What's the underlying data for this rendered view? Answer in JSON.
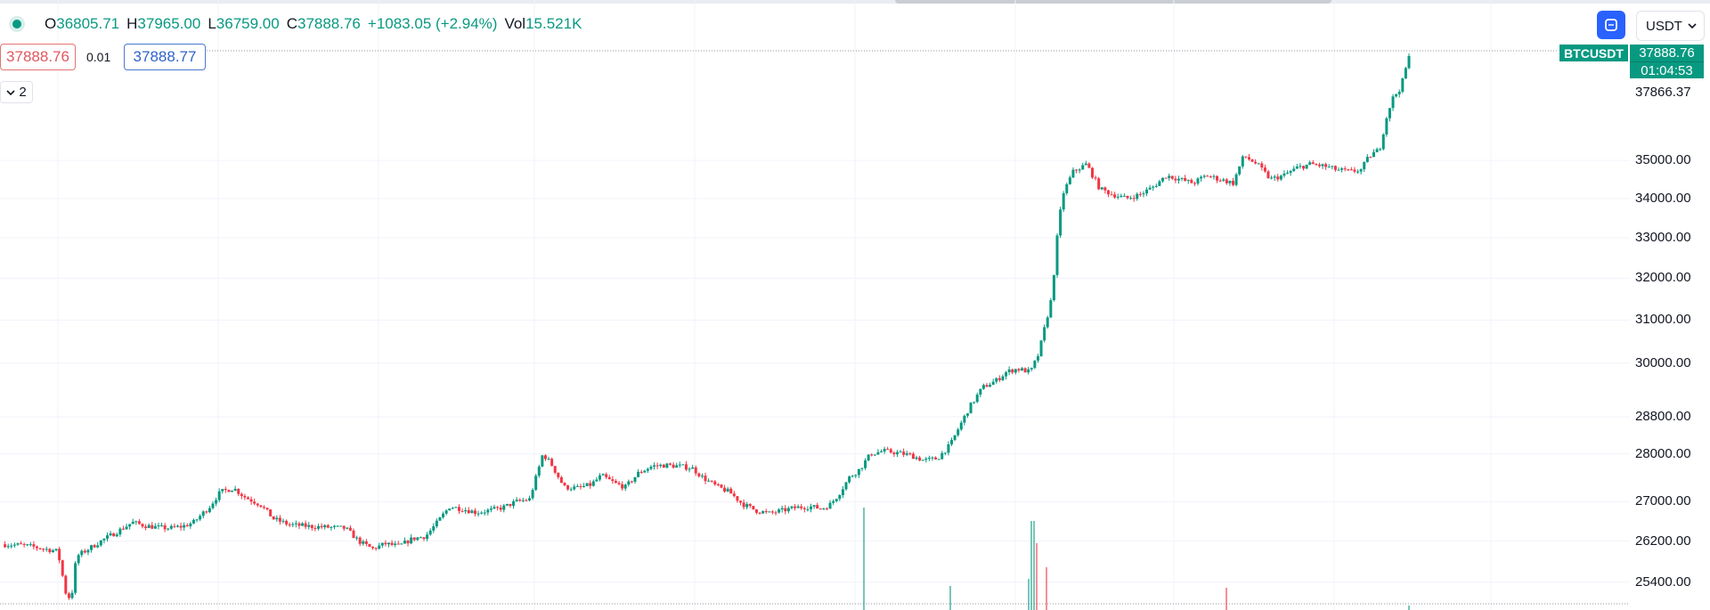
{
  "legend": {
    "open_label": "O",
    "open": "36805.71",
    "high_label": "H",
    "high": "37965.00",
    "low_label": "L",
    "low": "36759.00",
    "close_label": "C",
    "close": "37888.76",
    "change": "+1083.05 (+2.94%)",
    "vol_label": "Vol",
    "vol": "15.521K"
  },
  "trading": {
    "sell_price": "37888.76",
    "spread": "0.01",
    "buy_price": "37888.77"
  },
  "indicators": {
    "count": "2"
  },
  "toolbar": {
    "currency": "USDT"
  },
  "price_scale": {
    "symbol": "BTCUSDT",
    "last_price": "37888.76",
    "countdown": "01:04:53",
    "high_marker": "37866.37"
  },
  "colors": {
    "up": "#089981",
    "down": "#f23645",
    "accent": "#2962ff"
  },
  "chart_data": {
    "type": "candlestick",
    "symbol": "BTCUSDT",
    "currency": "USDT",
    "y_ticks": [
      35000,
      34000,
      33000,
      32000,
      31000,
      30000,
      28800,
      28000,
      27000,
      26200,
      25400
    ],
    "y_tick_labels": [
      "35000.00",
      "34000.00",
      "33000.00",
      "32000.00",
      "31000.00",
      "30000.00",
      "28800.00",
      "28000.00",
      "27000.00",
      "26200.00",
      "25400.00"
    ],
    "ylim": [
      24950,
      37990
    ],
    "scale": "log",
    "grid": true,
    "last_price": 37888.76,
    "price_path": [
      [
        0,
        26140
      ],
      [
        0.8,
        26120
      ],
      [
        1.5,
        26060
      ],
      [
        2.1,
        26000
      ],
      [
        2.4,
        25200
      ],
      [
        2.6,
        25050
      ],
      [
        2.8,
        25900
      ],
      [
        3.2,
        26030
      ],
      [
        3.8,
        26230
      ],
      [
        4.3,
        26380
      ],
      [
        4.9,
        26580
      ],
      [
        5.3,
        26520
      ],
      [
        5.8,
        26480
      ],
      [
        6.3,
        26460
      ],
      [
        6.8,
        26500
      ],
      [
        7.2,
        26580
      ],
      [
        7.8,
        26900
      ],
      [
        8.2,
        27200
      ],
      [
        8.7,
        27280
      ],
      [
        9.1,
        27100
      ],
      [
        9.7,
        26940
      ],
      [
        10.2,
        26650
      ],
      [
        10.8,
        26530
      ],
      [
        11.5,
        26500
      ],
      [
        12.2,
        26480
      ],
      [
        12.9,
        26460
      ],
      [
        13.4,
        26200
      ],
      [
        13.9,
        26050
      ],
      [
        14.4,
        26150
      ],
      [
        14.9,
        26100
      ],
      [
        15.4,
        26250
      ],
      [
        15.9,
        26300
      ],
      [
        16.3,
        26550
      ],
      [
        16.8,
        26900
      ],
      [
        17.3,
        26850
      ],
      [
        17.8,
        26780
      ],
      [
        18.3,
        26820
      ],
      [
        18.8,
        26880
      ],
      [
        19.3,
        27000
      ],
      [
        19.8,
        27050
      ],
      [
        20.1,
        27600
      ],
      [
        20.3,
        28000
      ],
      [
        20.6,
        27800
      ],
      [
        21.1,
        27300
      ],
      [
        21.6,
        27280
      ],
      [
        22.1,
        27350
      ],
      [
        22.5,
        27540
      ],
      [
        23.0,
        27380
      ],
      [
        23.4,
        27300
      ],
      [
        23.9,
        27600
      ],
      [
        24.4,
        27740
      ],
      [
        24.9,
        27760
      ],
      [
        25.4,
        27740
      ],
      [
        25.9,
        27700
      ],
      [
        26.3,
        27500
      ],
      [
        26.8,
        27320
      ],
      [
        27.3,
        27200
      ],
      [
        27.8,
        26950
      ],
      [
        28.3,
        26820
      ],
      [
        28.8,
        26760
      ],
      [
        29.3,
        26820
      ],
      [
        29.8,
        26880
      ],
      [
        30.3,
        26900
      ],
      [
        30.8,
        26860
      ],
      [
        31.1,
        26950
      ],
      [
        31.4,
        27150
      ],
      [
        31.8,
        27500
      ],
      [
        32.2,
        27680
      ],
      [
        32.6,
        28000
      ],
      [
        33.1,
        28060
      ],
      [
        33.6,
        28020
      ],
      [
        34.1,
        27970
      ],
      [
        34.6,
        27860
      ],
      [
        35.1,
        27900
      ],
      [
        35.6,
        28200
      ],
      [
        35.9,
        28550
      ],
      [
        36.3,
        29000
      ],
      [
        36.8,
        29450
      ],
      [
        37.3,
        29600
      ],
      [
        37.7,
        29800
      ],
      [
        38.1,
        29870
      ],
      [
        38.6,
        29800
      ],
      [
        38.9,
        30200
      ],
      [
        39.2,
        31000
      ],
      [
        39.4,
        31550
      ],
      [
        39.6,
        33000
      ],
      [
        39.8,
        34100
      ],
      [
        40.2,
        34700
      ],
      [
        40.7,
        34900
      ],
      [
        41.2,
        34250
      ],
      [
        41.7,
        34100
      ],
      [
        42.2,
        34000
      ],
      [
        42.7,
        34100
      ],
      [
        43.2,
        34300
      ],
      [
        43.7,
        34600
      ],
      [
        44.2,
        34500
      ],
      [
        44.7,
        34400
      ],
      [
        45.2,
        34600
      ],
      [
        45.7,
        34500
      ],
      [
        46.2,
        34400
      ],
      [
        46.6,
        35120
      ],
      [
        47.1,
        34900
      ],
      [
        47.6,
        34500
      ],
      [
        48.1,
        34600
      ],
      [
        48.6,
        34800
      ],
      [
        49.1,
        34900
      ],
      [
        49.6,
        34850
      ],
      [
        50.1,
        34750
      ],
      [
        50.6,
        34700
      ],
      [
        51.0,
        34750
      ],
      [
        51.3,
        35100
      ],
      [
        51.7,
        35300
      ],
      [
        52.0,
        36300
      ],
      [
        52.2,
        36700
      ],
      [
        52.5,
        37000
      ],
      [
        52.8,
        37888.76
      ]
    ],
    "volume_profile": "low in early period; spikes near the breakout to 30000 and at 33000-35000 levels"
  }
}
